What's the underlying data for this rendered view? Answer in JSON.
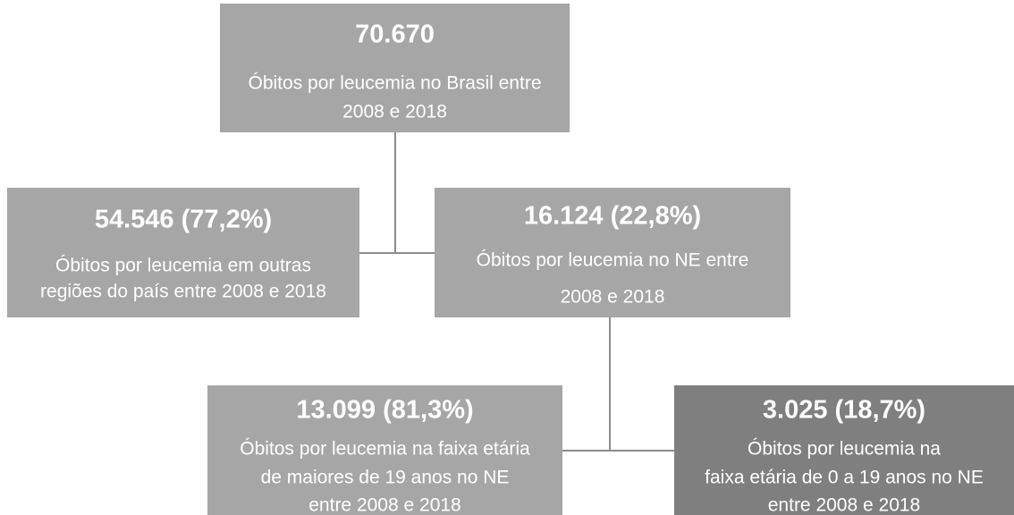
{
  "nodes": [
    {
      "value": "70.670",
      "lines": [
        "Óbitos por leucemia no Brasil entre",
        "2008 e 2018"
      ]
    },
    {
      "value": "54.546 (77,2%)",
      "lines": [
        "Óbitos por leucemia em outras",
        "regiões do país entre 2008 e 2018"
      ]
    },
    {
      "value": "16.124 (22,8%)",
      "lines": [
        "Óbitos por leucemia no NE entre",
        "2008 e 2018"
      ]
    },
    {
      "value": "13.099 (81,3%)",
      "lines": [
        "Óbitos por leucemia na faixa etária",
        "de maiores de 19 anos no NE",
        "entre 2008 e 2018"
      ]
    },
    {
      "value": "3.025 (18,7%)",
      "lines": [
        "Óbitos por leucemia na",
        "faixa etária de 0 a 19 anos no NE",
        "entre 2008 e 2018"
      ]
    }
  ]
}
